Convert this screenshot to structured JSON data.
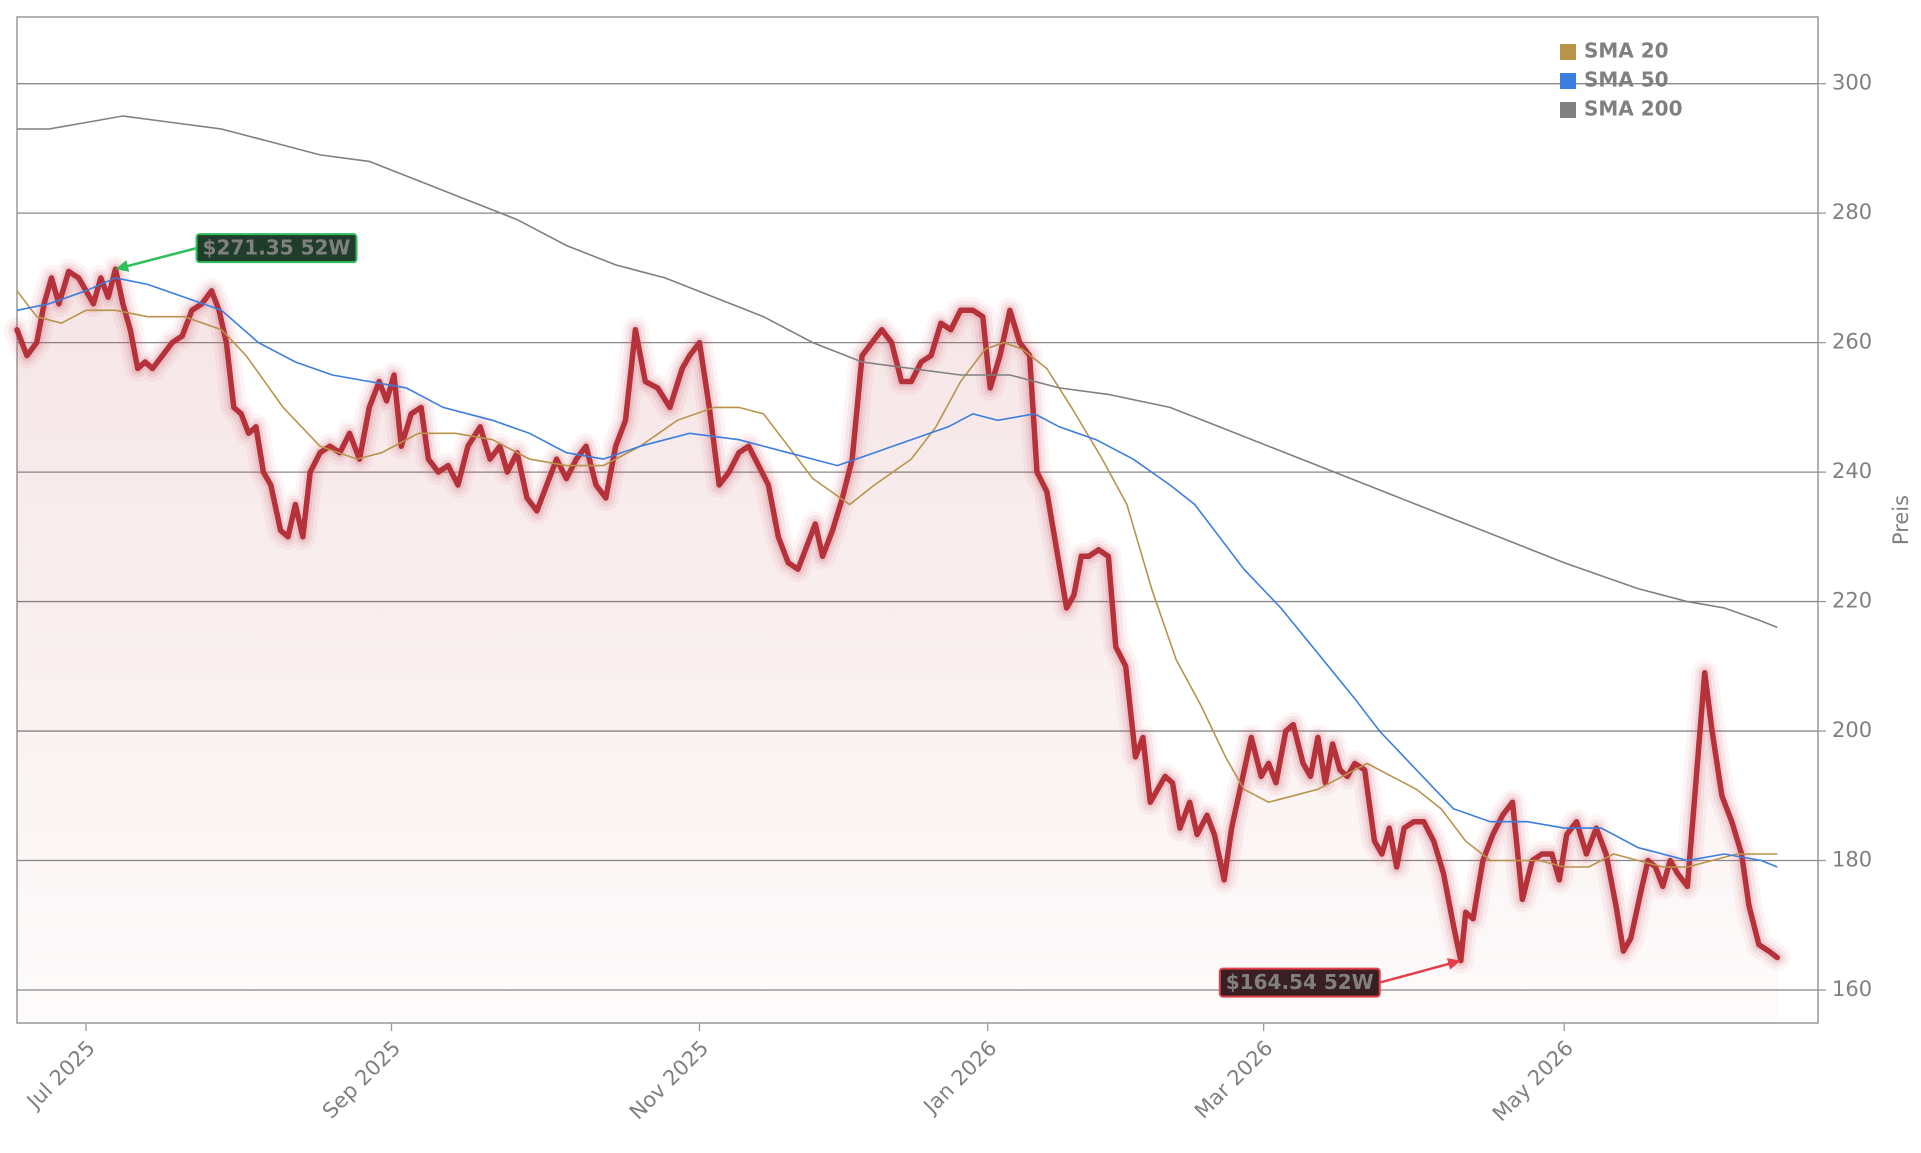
{
  "chart_data": {
    "type": "line",
    "y_label": "Preis",
    "xlim": [
      0,
      365.5
    ],
    "ylim": [
      154.9,
      310.3
    ],
    "xticks": [
      {
        "value": 14,
        "label": "Jul 2025"
      },
      {
        "value": 76,
        "label": "Sep 2025"
      },
      {
        "value": 138.5,
        "label": "Nov 2025"
      },
      {
        "value": 197,
        "label": "Jan 2026"
      },
      {
        "value": 253,
        "label": "Mar 2026"
      },
      {
        "value": 314,
        "label": "May 2026"
      }
    ],
    "yticks": [
      160,
      180,
      200,
      220,
      240,
      260,
      280,
      300
    ],
    "grid": true,
    "legend": "upper right",
    "annotations": [
      "$271.35 52W",
      "$164.54 52W"
    ],
    "series": [
      {
        "color": "#b5323a",
        "x": [
          0,
          2,
          4,
          5.5,
          7,
          8.5,
          10.5,
          12.5,
          14,
          15.5,
          17,
          18.5,
          20,
          21.5,
          23,
          24.5,
          26,
          27.5,
          29.5,
          31.5,
          33.5,
          35.5,
          37.5,
          39.5,
          41,
          42.5,
          44,
          45.5,
          47,
          48.5,
          50,
          51.5,
          53.5,
          55,
          56.5,
          58,
          59.5,
          61.5,
          63.5,
          65.5,
          67.5,
          69.5,
          71.5,
          73.5,
          75,
          76.5,
          78,
          80,
          82,
          83.5,
          85.5,
          87.5,
          89.5,
          91.5,
          94,
          96,
          98,
          99.5,
          101.5,
          103.5,
          105.5,
          107.5,
          109.5,
          111.5,
          113.5,
          115.5,
          117.5,
          119.5,
          121.5,
          123.5,
          125.5,
          127.5,
          130,
          132.5,
          135,
          136.5,
          138.5,
          140.5,
          142.5,
          144.5,
          146.5,
          148.5,
          150.5,
          152.5,
          154.5,
          156.5,
          158.5,
          160.5,
          162,
          163.5,
          165.5,
          167.5,
          169.5,
          171.5,
          173.5,
          175.5,
          177.5,
          179.5,
          181.5,
          183.5,
          185.5,
          187.5,
          189.5,
          191.5,
          194,
          196,
          197.5,
          199.5,
          201.5,
          203.5,
          205.5,
          207,
          209,
          211,
          213,
          214.5,
          216,
          217.5,
          219.5,
          221.5,
          223,
          225,
          227,
          228.5,
          230,
          231.5,
          233,
          234.5,
          236,
          238,
          239.5,
          241.5,
          243,
          245,
          246.5,
          248.5,
          250.5,
          252.5,
          254,
          255.5,
          257.5,
          259,
          261,
          262.5,
          264,
          265.5,
          267,
          268.5,
          270,
          271.5,
          273.5,
          275.5,
          277,
          278.5,
          280,
          281.5,
          283.5,
          285.5,
          287.5,
          289.5,
          291.5,
          293,
          294,
          295.5,
          297.5,
          299.5,
          301.5,
          303.5,
          305.5,
          307.5,
          309.5,
          311.5,
          313,
          314.5,
          316.5,
          318.5,
          320.5,
          322.5,
          324.5,
          326,
          327.5,
          329.5,
          331,
          332.5,
          334,
          335.5,
          337,
          339,
          340.5,
          342.5,
          344,
          346,
          348,
          350,
          351.5,
          353.5,
          355.5,
          357.25
        ],
        "values": [
          262,
          258,
          260,
          266,
          270,
          266,
          271,
          270,
          268,
          266,
          270,
          267,
          271.35,
          266,
          262,
          256,
          257,
          256,
          258,
          260,
          261,
          265,
          266,
          268,
          265,
          260,
          250,
          249,
          246,
          247,
          240,
          238,
          231,
          230,
          235,
          230,
          240,
          243,
          244,
          243,
          246,
          242,
          250,
          254,
          251,
          255,
          244,
          249,
          250,
          242,
          240,
          241,
          238,
          244,
          247,
          242,
          244,
          240,
          243,
          236,
          234,
          238,
          242,
          239,
          242,
          244,
          238,
          236,
          244,
          248,
          262,
          254,
          253,
          250,
          256,
          258,
          260,
          250,
          238,
          240,
          243,
          244,
          241,
          238,
          230,
          226,
          225,
          229,
          232,
          227,
          231,
          236,
          242,
          258,
          260,
          262,
          260,
          254,
          254,
          257,
          258,
          263,
          262,
          265,
          265,
          264,
          253,
          258,
          265,
          260,
          258,
          240,
          237,
          228,
          219,
          221,
          227,
          227,
          228,
          227,
          213,
          210,
          196,
          199,
          189,
          191,
          193,
          192,
          185,
          189,
          184,
          187,
          184,
          177,
          185,
          192,
          199,
          193,
          195,
          192,
          200,
          201,
          195,
          193,
          199,
          192,
          198,
          194,
          193,
          195,
          194,
          183,
          181,
          185,
          179,
          185,
          186,
          186,
          183,
          178,
          170,
          164.54,
          172,
          171,
          180,
          184,
          187,
          189,
          174,
          180,
          181,
          181,
          177,
          184,
          186,
          181,
          185,
          181,
          173,
          166,
          168,
          175,
          180,
          179,
          176,
          180,
          178,
          176,
          190,
          209,
          200,
          190,
          186,
          181,
          173,
          167,
          166,
          165
        ]
      },
      {
        "name": "SMA 20",
        "color": "#b8934a",
        "x": [
          0,
          4,
          9,
          14,
          20,
          26.5,
          34,
          41.5,
          46.5,
          54,
          61.5,
          69,
          74,
          81.5,
          89,
          96.5,
          104,
          111.5,
          119,
          126.5,
          134,
          141.5,
          146.5,
          151.5,
          156.5,
          161.5,
          169,
          174,
          181.5,
          186.5,
          191.5,
          196.5,
          200.25,
          204,
          209,
          214,
          220.25,
          225.25,
          230.25,
          235.25,
          240.25,
          245.25,
          249,
          254,
          259,
          264,
          269,
          274,
          279,
          284,
          289,
          294,
          299,
          304,
          309,
          314,
          319,
          324,
          329,
          334,
          339,
          344,
          349,
          354,
          357.25
        ],
        "values": [
          268,
          264,
          263,
          265,
          265,
          264,
          264,
          262,
          258,
          250,
          244,
          242,
          243,
          246,
          246,
          245,
          242,
          241,
          241,
          244,
          248,
          250,
          250,
          249,
          244,
          239,
          235,
          238,
          242,
          247,
          254,
          259,
          260,
          259,
          256,
          250,
          242,
          235,
          222,
          211,
          204,
          196,
          191,
          189,
          190,
          191,
          193,
          195,
          193,
          191,
          188,
          183,
          180,
          180,
          180,
          179,
          179,
          181,
          180,
          179,
          179,
          180,
          181,
          181,
          181
        ]
      },
      {
        "name": "SMA 50",
        "color": "#3b7de0",
        "x": [
          0,
          6.5,
          14,
          20,
          26.5,
          34,
          41.5,
          49,
          56.5,
          64,
          71.5,
          79,
          86.5,
          96.5,
          104,
          111.5,
          119,
          126.5,
          136.5,
          146.5,
          156.5,
          166.5,
          174,
          181.5,
          189,
          194,
          199,
          206.5,
          211.5,
          219,
          226.5,
          234,
          239,
          244,
          249,
          256.5,
          264,
          271.5,
          276.5,
          284,
          291.5,
          299,
          306.5,
          314,
          321.5,
          329,
          339,
          346.5,
          354,
          357.25
        ],
        "values": [
          265,
          266,
          268,
          270,
          269,
          267,
          265,
          260,
          257,
          255,
          254,
          253,
          250,
          248,
          246,
          243,
          242,
          244,
          246,
          245,
          243,
          241,
          243,
          245,
          247,
          249,
          248,
          249,
          247,
          245,
          242,
          238,
          235,
          230,
          225,
          219,
          212,
          205,
          200,
          194,
          188,
          186,
          186,
          185,
          185,
          182,
          180,
          181,
          180,
          179
        ]
      },
      {
        "name": "SMA 200",
        "color": "#808080",
        "x": [
          0,
          6.5,
          14,
          21.5,
          31.5,
          41.5,
          51.5,
          61.5,
          71.5,
          81.5,
          91.5,
          101.5,
          111.5,
          121.5,
          131.5,
          141.5,
          151.5,
          161.5,
          171.5,
          181.5,
          191.5,
          201.5,
          211.5,
          221.5,
          234,
          244,
          254,
          264,
          274,
          284,
          294,
          304,
          314,
          321.5,
          329,
          339,
          346.5,
          354,
          357.25
        ],
        "values": [
          293,
          293,
          294,
          295,
          294,
          293,
          291,
          289,
          288,
          285,
          282,
          279,
          275,
          272,
          270,
          267,
          264,
          260,
          257,
          256,
          255,
          255,
          253,
          252,
          250,
          247,
          244,
          241,
          238,
          235,
          232,
          229,
          226,
          224,
          222,
          220,
          219,
          217,
          216
        ]
      }
    ]
  }
}
